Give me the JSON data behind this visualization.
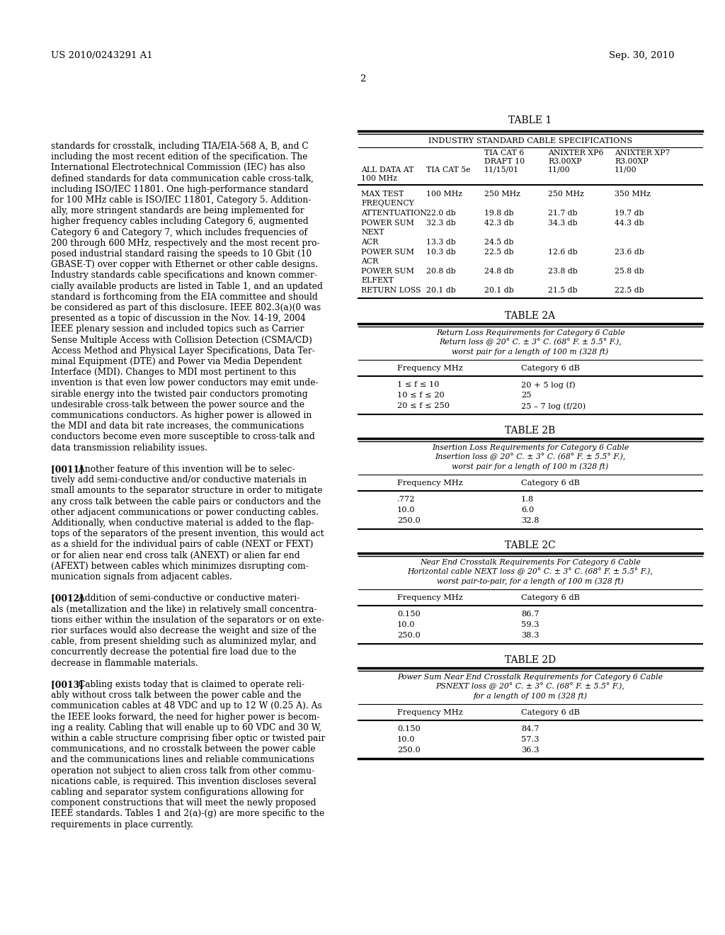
{
  "header_left": "US 2010/0243291 A1",
  "header_right": "Sep. 30, 2010",
  "page_number": "2",
  "background_color": "#ffffff",
  "left_text": [
    "standards for crosstalk, including TIA/EIA-568 A, B, and C",
    "including the most recent edition of the specification. The",
    "International Electrotechnical Commission (IEC) has also",
    "defined standards for data communication cable cross-talk,",
    "including ISO/IEC 11801. One high-performance standard",
    "for 100 MHz cable is ISO/IEC 11801, Category 5. Addition-",
    "ally, more stringent standards are being implemented for",
    "higher frequency cables including Category 6, augmented",
    "Category 6 and Category 7, which includes frequencies of",
    "200 through 600 MHz, respectively and the most recent pro-",
    "posed industrial standard raising the speeds to 10 Gbit (10",
    "GBASE-T) over copper with Ethernet or other cable designs.",
    "Industry standards cable specifications and known commer-",
    "cially available products are listed in Table 1, and an updated",
    "standard is forthcoming from the EIA committee and should",
    "be considered as part of this disclosure. IEEE 802.3(a)(0 was",
    "presented as a topic of discussion in the Nov. 14-19, 2004",
    "IEEE plenary session and included topics such as Carrier",
    "Sense Multiple Access with Collision Detection (CSMA/CD)",
    "Access Method and Physical Layer Specifications, Data Ter-",
    "minal Equipment (DTE) and Power via Media Dependent",
    "Interface (MDI). Changes to MDI most pertinent to this",
    "invention is that even low power conductors may emit unde-",
    "sirable energy into the twisted pair conductors promoting",
    "undesirable cross-talk between the power source and the",
    "communications conductors. As higher power is allowed in",
    "the MDI and data bit rate increases, the communications",
    "conductors become even more susceptible to cross-talk and",
    "data transmission reliability issues.",
    "",
    "[0011]  Another feature of this invention will be to selec-",
    "tively add semi-conductive and/or conductive materials in",
    "small amounts to the separator structure in order to mitigate",
    "any cross talk between the cable pairs or conductors and the",
    "other adjacent communications or power conducting cables.",
    "Additionally, when conductive material is added to the flap-",
    "tops of the separators of the present invention, this would act",
    "as a shield for the individual pairs of cable (NEXT or FEXT)",
    "or for alien near end cross talk (ANEXT) or alien far end",
    "(AFEXT) between cables which minimizes disrupting com-",
    "munication signals from adjacent cables.",
    "",
    "[0012]  Addition of semi-conductive or conductive materi-",
    "als (metallization and the like) in relatively small concentra-",
    "tions either within the insulation of the separators or on exte-",
    "rior surfaces would also decrease the weight and size of the",
    "cable, from present shielding such as aluminized mylar, and",
    "concurrently decrease the potential fire load due to the",
    "decrease in flammable materials.",
    "",
    "[0013]  Cabling exists today that is claimed to operate reli-",
    "ably without cross talk between the power cable and the",
    "communication cables at 48 VDC and up to 12 W (0.25 A). As",
    "the IEEE looks forward, the need for higher power is becom-",
    "ing a reality. Cabling that will enable up to 60 VDC and 30 W,",
    "within a cable structure comprising fiber optic or twisted pair",
    "communications, and no crosstalk between the power cable",
    "and the communications lines and reliable communications",
    "operation not subject to alien cross talk from other commu-",
    "nications cable, is required. This invention discloses several",
    "cabling and separator system configurations allowing for",
    "component constructions that will meet the newly proposed",
    "IEEE standards. Tables 1 and 2(a)-(g) are more specific to the",
    "requirements in place currently."
  ],
  "table1_title": "TABLE 1",
  "table1_subtitle": "INDUSTRY STANDARD CABLE SPECIFICATIONS",
  "table1_col0_lines": [
    "ALL DATA AT",
    "100 MHz"
  ],
  "table1_col1_lines": [
    "TIA CAT 5e"
  ],
  "table1_col2_lines": [
    "TIA CAT 6",
    "DRAFT 10",
    "11/15/01"
  ],
  "table1_col3_lines": [
    "ANIXTER XP6",
    "R3.00XP",
    "11/00"
  ],
  "table1_col4_lines": [
    "ANIXTER XP7",
    "R3.00XP",
    "11/00"
  ],
  "table1_rows": [
    [
      "MAX TEST\nFREQUENCY",
      "100 MHz",
      "250 MHz",
      "250 MHz",
      "350 MHz"
    ],
    [
      "ATTENTUATION",
      "22.0 db",
      "19.8 db",
      "21.7 db",
      "19.7 db"
    ],
    [
      "POWER SUM\nNEXT",
      "32.3 db",
      "42.3 db",
      "34.3 db",
      "44.3 db"
    ],
    [
      "ACR",
      "13.3 db",
      "24.5 db",
      "",
      ""
    ],
    [
      "POWER SUM\nACR",
      "10.3 db",
      "22.5 db",
      "12.6 db",
      "23.6 db"
    ],
    [
      "POWER SUM\nELFEXT",
      "20.8 db",
      "24.8 db",
      "23.8 db",
      "25.8 db"
    ],
    [
      "RETURN LOSS",
      "20.1 db",
      "20.1 db",
      "21.5 db",
      "22.5 db"
    ]
  ],
  "table2a_title": "TABLE 2A",
  "table2a_desc": [
    "Return Loss Requirements for Category 6 Cable",
    "Return loss @ 20° C. ± 3° C. (68° F. ± 5.5° F.),",
    "worst pair for a length of 100 m (328 ft)"
  ],
  "table2a_col_headers": [
    "Frequency MHz",
    "Category 6 dB"
  ],
  "table2a_rows": [
    [
      "1 ≤ f ≤ 10",
      "20 + 5 log (f)"
    ],
    [
      "10 ≤ f ≤ 20",
      "25"
    ],
    [
      "20 ≤ f ≤ 250",
      "25 – 7 log (f/20)"
    ]
  ],
  "table2b_title": "TABLE 2B",
  "table2b_desc": [
    "Insertion Loss Requirements for Category 6 Cable",
    "Insertion loss @ 20° C. ± 3° C. (68° F. ± 5.5° F.),",
    "worst pair for a length of 100 m (328 ft)"
  ],
  "table2b_col_headers": [
    "Frequency MHz",
    "Category 6 dB"
  ],
  "table2b_rows": [
    [
      ".772",
      "1.8"
    ],
    [
      "10.0",
      "6.0"
    ],
    [
      "250.0",
      "32.8"
    ]
  ],
  "table2c_title": "TABLE 2C",
  "table2c_desc": [
    "Near End Crosstalk Requirements For Category 6 Cable",
    "Horizontal cable NEXT loss @ 20° C. ± 3° C. (68° F. ± 5.5° F.),",
    "worst pair-to-pair, for a length of 100 m (328 ft)"
  ],
  "table2c_col_headers": [
    "Frequency MHz",
    "Category 6 dB"
  ],
  "table2c_rows": [
    [
      "0.150",
      "86.7"
    ],
    [
      "10.0",
      "59.3"
    ],
    [
      "250.0",
      "38.3"
    ]
  ],
  "table2d_title": "TABLE 2D",
  "table2d_desc": [
    "Power Sum Near End Crosstalk Requirements for Category 6 Cable",
    "PSNEXT loss @ 20° C. ± 3° C. (68° F. ± 5.5° F.),",
    "for a length of 100 m (328 ft)"
  ],
  "table2d_col_headers": [
    "Frequency MHz",
    "Category 6 dB"
  ],
  "table2d_rows": [
    [
      "0.150",
      "84.7"
    ],
    [
      "10.0",
      "57.3"
    ],
    [
      "250.0",
      "36.3"
    ]
  ]
}
